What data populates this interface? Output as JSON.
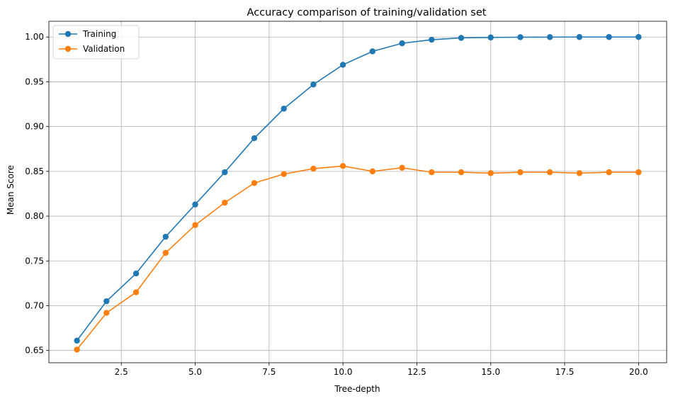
{
  "chart_data": {
    "type": "line",
    "title": "Accuracy comparison of training/validation set",
    "xlabel": "Tree-depth",
    "ylabel": "Mean Score",
    "xlim": [
      0.05,
      20.95
    ],
    "ylim": [
      0.6363,
      1.0176
    ],
    "xticks": [
      2.5,
      5.0,
      7.5,
      10.0,
      12.5,
      15.0,
      17.5,
      20.0
    ],
    "xtick_labels": [
      "2.5",
      "5.0",
      "7.5",
      "10.0",
      "12.5",
      "15.0",
      "17.5",
      "20.0"
    ],
    "yticks": [
      0.65,
      0.7,
      0.75,
      0.8,
      0.85,
      0.9,
      0.95,
      1.0
    ],
    "ytick_labels": [
      "0.65",
      "0.70",
      "0.75",
      "0.80",
      "0.85",
      "0.90",
      "0.95",
      "1.00"
    ],
    "grid": true,
    "legend_position": "top-left",
    "x": [
      1,
      2,
      3,
      4,
      5,
      6,
      7,
      8,
      9,
      10,
      11,
      12,
      13,
      14,
      15,
      16,
      17,
      18,
      19,
      20
    ],
    "series": [
      {
        "name": "Training",
        "color": "#1f77b4",
        "values": [
          0.661,
          0.705,
          0.736,
          0.777,
          0.813,
          0.849,
          0.887,
          0.92,
          0.947,
          0.969,
          0.984,
          0.993,
          0.997,
          0.999,
          0.9995,
          0.9998,
          0.9999,
          1.0,
          1.0,
          1.0
        ]
      },
      {
        "name": "Validation",
        "color": "#ff7f0e",
        "values": [
          0.651,
          0.692,
          0.715,
          0.759,
          0.79,
          0.815,
          0.837,
          0.847,
          0.853,
          0.856,
          0.85,
          0.854,
          0.849,
          0.849,
          0.848,
          0.849,
          0.849,
          0.848,
          0.849,
          0.849
        ]
      }
    ]
  }
}
